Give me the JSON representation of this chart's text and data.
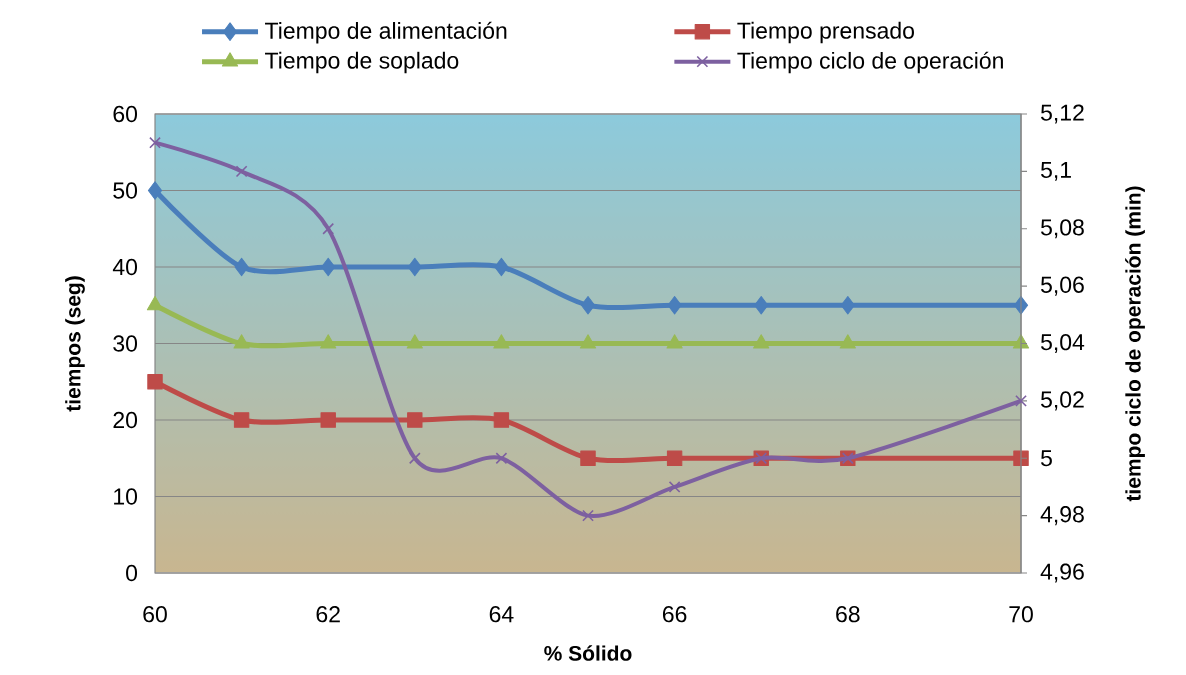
{
  "chart_data": {
    "type": "line",
    "x": [
      60,
      61,
      62,
      63,
      64,
      65,
      66,
      67,
      68,
      70
    ],
    "series": [
      {
        "name": "Tiempo de alimentación",
        "color": "#4a7ebb",
        "marker": "diamond",
        "values": [
          50,
          40,
          40,
          40,
          40,
          35,
          35,
          35,
          35,
          35
        ]
      },
      {
        "name": "Tiempo prensado",
        "color": "#be4b48",
        "marker": "square",
        "values": [
          25,
          20,
          20,
          20,
          20,
          15,
          15,
          15,
          15,
          15
        ]
      },
      {
        "name": "Tiempo de soplado",
        "color": "#98b954",
        "marker": "triangle",
        "values": [
          35,
          30,
          30,
          30,
          30,
          30,
          30,
          30,
          30,
          30
        ]
      },
      {
        "name": "Tiempo ciclo de operación",
        "color": "#7d60a0",
        "marker": "cross",
        "axis": "y2",
        "values": [
          5.11,
          5.1,
          5.08,
          5.0,
          5.0,
          4.98,
          4.99,
          5.0,
          5.0,
          5.02
        ]
      }
    ],
    "xlabel": "% Sólido",
    "ylabel": "tiempos (seg)",
    "y2label": "tiempo ciclo de operación (min)",
    "xlim": [
      60,
      70
    ],
    "xticks": [
      60,
      62,
      64,
      66,
      68,
      70
    ],
    "ylim": [
      0,
      60
    ],
    "yticks": [
      0,
      10,
      20,
      30,
      40,
      50,
      60
    ],
    "y2lim": [
      4.96,
      5.12
    ],
    "y2ticks": [
      {
        "value": 4.96,
        "label": "4,96"
      },
      {
        "value": 4.98,
        "label": "4,98"
      },
      5,
      {
        "value": 5.02,
        "label": "5,02"
      },
      {
        "value": 5.04,
        "label": "5,04"
      },
      {
        "value": 5.06,
        "label": "5,06"
      },
      {
        "value": 5.08,
        "label": "5,08"
      },
      {
        "value": 5.1,
        "label": "5,1"
      },
      {
        "value": 5.12,
        "label": "5,12"
      }
    ],
    "grid": "y",
    "legend": "top",
    "line_style": "solid"
  }
}
